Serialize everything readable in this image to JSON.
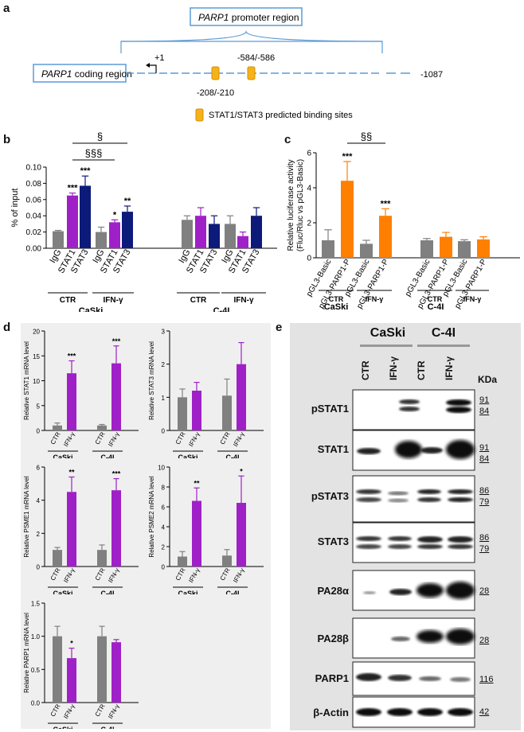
{
  "panel_labels": {
    "a": "a",
    "b": "b",
    "c": "c",
    "d": "d",
    "e": "e"
  },
  "panel_a": {
    "promoter_label_gene": "PARP1",
    "promoter_label_rest": " promoter region",
    "coding_label_gene": "PARP1",
    "coding_label_rest": " coding region",
    "tss": "+1",
    "site1": "-208/-210",
    "site2": "-584/-586",
    "end": "-1087",
    "legend": "STAT1/STAT3 predicted binding sites",
    "colors": {
      "site": "#f6b21b",
      "box": "#5b9bd5",
      "line": "#5b9bd5"
    }
  },
  "chart_data": [
    {
      "id": "b",
      "type": "bar",
      "title": "",
      "ylabel": "% of input",
      "ylim": [
        0,
        0.1
      ],
      "yticks": [
        "0.00",
        "0.02",
        "0.04",
        "0.06",
        "0.08",
        "0.10"
      ],
      "categories": [
        "IgG",
        "STAT1",
        "STAT3",
        "IgG",
        "STAT1",
        "STAT3",
        "IgG",
        "STAT1",
        "STAT3",
        "IgG",
        "STAT1",
        "STAT3"
      ],
      "values": [
        0.021,
        0.065,
        0.077,
        0.02,
        0.032,
        0.045,
        0.035,
        0.04,
        0.03,
        0.03,
        0.015,
        0.04
      ],
      "errors": [
        0.001,
        0.003,
        0.012,
        0.006,
        0.003,
        0.007,
        0.005,
        0.01,
        0.01,
        0.01,
        0.005,
        0.01
      ],
      "colors": [
        "#808080",
        "#a020c8",
        "#0c1a7a",
        "#808080",
        "#a020c8",
        "#0c1a7a",
        "#808080",
        "#a020c8",
        "#0c1a7a",
        "#808080",
        "#a020c8",
        "#0c1a7a"
      ],
      "sig": [
        "",
        "***",
        "***",
        "",
        "*",
        "**",
        "",
        "",
        "",
        "",
        "",
        ""
      ],
      "groups": [
        "CTR",
        "IFN-γ",
        "CTR",
        "IFN-γ"
      ],
      "cells": [
        "CaSki",
        "C-4I"
      ],
      "brackets": [
        "§",
        "§§§"
      ]
    },
    {
      "id": "c",
      "type": "bar",
      "ylabel": "Relative luciferase activity (Fluc/Rluc vs pGL3-Basic)",
      "ylabel_line1": "Relative luciferase activity",
      "ylabel_line2": "(Fluc/Rluc vs pGL3-Basic)",
      "ylim": [
        0,
        6
      ],
      "yticks": [
        "0",
        "2",
        "4",
        "6"
      ],
      "categories": [
        "pGL3-Basic",
        "pGL3-PARP1-P",
        "pGL3-Basic",
        "pGL3-PARP1-P",
        "pGL3-Basic",
        "pGL3-PARP1-P",
        "pGL3-Basic",
        "pGL3-PARP1-P"
      ],
      "values": [
        1.0,
        4.4,
        0.8,
        2.4,
        1.0,
        1.2,
        0.95,
        1.05
      ],
      "errors": [
        0.6,
        1.1,
        0.2,
        0.4,
        0.1,
        0.25,
        0.08,
        0.15
      ],
      "colors": [
        "#808080",
        "#ff7f00",
        "#808080",
        "#ff7f00",
        "#808080",
        "#ff7f00",
        "#808080",
        "#ff7f00"
      ],
      "sig": [
        "",
        "***",
        "",
        "***",
        "",
        "",
        "",
        ""
      ],
      "groups": [
        "CTR",
        "IFN-γ",
        "CTR",
        "IFN-γ"
      ],
      "cells": [
        "CaSki",
        "C-4I"
      ],
      "brackets": [
        "§§"
      ]
    },
    {
      "id": "d1",
      "type": "bar",
      "ylabel": "Relative STAT1 mRNA level",
      "ylim": [
        0,
        20
      ],
      "yticks": [
        "0",
        "5",
        "10",
        "15",
        "20"
      ],
      "categories": [
        "CTR",
        "IFN-γ",
        "CTR",
        "IFN-γ"
      ],
      "values": [
        1.0,
        11.5,
        1.0,
        13.5
      ],
      "errors": [
        0.5,
        2.5,
        0.2,
        3.5
      ],
      "colors": [
        "#808080",
        "#a020c8",
        "#808080",
        "#a020c8"
      ],
      "sig": [
        "",
        "***",
        "",
        "***"
      ],
      "cells": [
        "CaSki",
        "C-4I"
      ]
    },
    {
      "id": "d2",
      "type": "bar",
      "ylabel": "Relative STAT3 mRNA level",
      "ylim": [
        0,
        3
      ],
      "yticks": [
        "0",
        "1",
        "2",
        "3"
      ],
      "categories": [
        "CTR",
        "IFN-γ",
        "CTR",
        "IFN-γ"
      ],
      "values": [
        1.0,
        1.2,
        1.05,
        2.0
      ],
      "errors": [
        0.25,
        0.25,
        0.5,
        0.65
      ],
      "colors": [
        "#808080",
        "#a020c8",
        "#808080",
        "#a020c8"
      ],
      "sig": [
        "",
        "",
        "",
        ""
      ],
      "cells": [
        "CaSki",
        "C-4I"
      ]
    },
    {
      "id": "d3",
      "type": "bar",
      "ylabel": "Relative PSME1 mRNA level",
      "ylim": [
        0,
        6
      ],
      "yticks": [
        "0",
        "2",
        "4",
        "6"
      ],
      "categories": [
        "CTR",
        "IFN-γ",
        "CTR",
        "IFN-γ"
      ],
      "values": [
        1.0,
        4.5,
        1.0,
        4.6
      ],
      "errors": [
        0.15,
        0.9,
        0.3,
        0.7
      ],
      "colors": [
        "#808080",
        "#a020c8",
        "#808080",
        "#a020c8"
      ],
      "sig": [
        "",
        "**",
        "",
        "***"
      ],
      "cells": [
        "CaSki",
        "C-4I"
      ]
    },
    {
      "id": "d4",
      "type": "bar",
      "ylabel": "Relative PSME2 mRNA level",
      "ylim": [
        0,
        10
      ],
      "yticks": [
        "0",
        "2",
        "4",
        "6",
        "8",
        "10"
      ],
      "categories": [
        "CTR",
        "IFN-γ",
        "CTR",
        "IFN-γ"
      ],
      "values": [
        1.0,
        6.6,
        1.1,
        6.4
      ],
      "errors": [
        0.5,
        1.3,
        0.6,
        2.7
      ],
      "colors": [
        "#808080",
        "#a020c8",
        "#808080",
        "#a020c8"
      ],
      "sig": [
        "",
        "**",
        "",
        "*"
      ],
      "cells": [
        "CaSki",
        "C-4I"
      ]
    },
    {
      "id": "d5",
      "type": "bar",
      "ylabel": "Relative PARP1 mRNA level",
      "ylim": [
        0,
        1.5
      ],
      "yticks": [
        "0.0",
        "0.5",
        "1.0",
        "1.5"
      ],
      "categories": [
        "CTR",
        "IFN-γ",
        "CTR",
        "IFN-γ"
      ],
      "values": [
        1.0,
        0.67,
        1.0,
        0.91
      ],
      "errors": [
        0.15,
        0.15,
        0.15,
        0.04
      ],
      "colors": [
        "#808080",
        "#a020c8",
        "#808080",
        "#a020c8"
      ],
      "sig": [
        "",
        "*",
        "",
        ""
      ],
      "cells": [
        "CaSki",
        "C-4I"
      ]
    }
  ],
  "panel_e": {
    "cells": [
      "CaSki",
      "C-4I"
    ],
    "lanes": [
      "CTR",
      "IFN-γ",
      "CTR",
      "IFN-γ"
    ],
    "kda_header": "KDa",
    "blots": [
      {
        "label": "pSTAT1",
        "kda": [
          "91",
          "84"
        ]
      },
      {
        "label": "STAT1",
        "kda": [
          "91",
          "84"
        ]
      },
      {
        "label": "pSTAT3",
        "kda": [
          "86",
          "79"
        ]
      },
      {
        "label": "STAT3",
        "kda": [
          "86",
          "79"
        ]
      },
      {
        "label": "PA28α",
        "kda": [
          "28"
        ]
      },
      {
        "label": "PA28β",
        "kda": [
          "28"
        ]
      },
      {
        "label": "PARP1",
        "kda": [
          "116"
        ]
      },
      {
        "label": "β-Actin",
        "kda": [
          "42"
        ]
      }
    ]
  }
}
